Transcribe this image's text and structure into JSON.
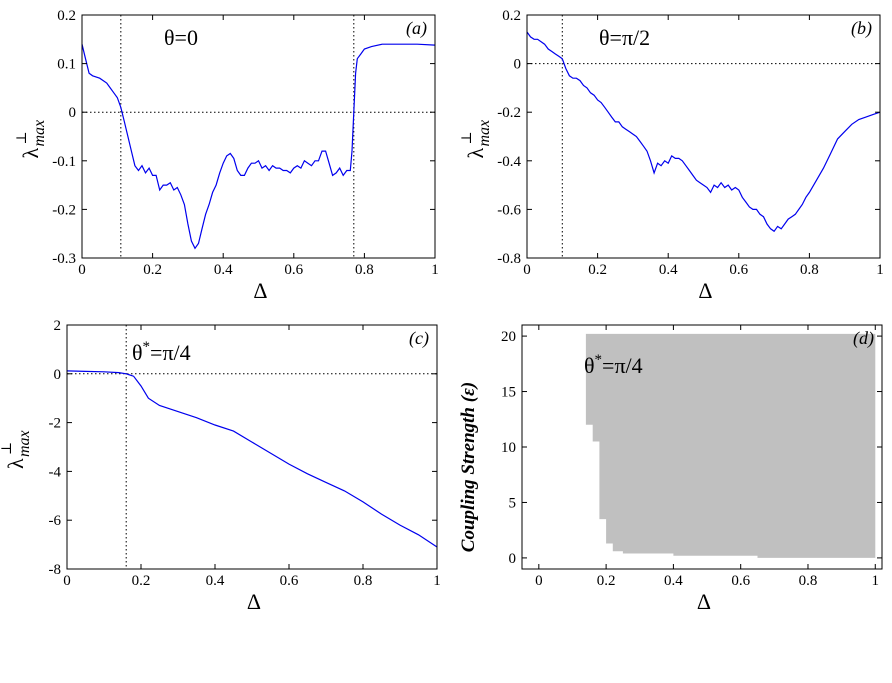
{
  "chart_data": [
    {
      "panel": "(a)",
      "type": "line",
      "annotation": "θ=0",
      "xlabel": "Δ",
      "ylabel": "λ⊥max",
      "xlim": [
        0,
        1
      ],
      "ylim": [
        -0.3,
        0.2
      ],
      "xticks": [
        "0",
        "0.2",
        "0.4",
        "0.6",
        "0.8",
        "1"
      ],
      "yticks": [
        "-0.3",
        "-0.2",
        "-0.1",
        "0",
        "0.1",
        "0.2"
      ],
      "reference_lines": {
        "horizontal_y": 0,
        "vertical_x": [
          0.11,
          0.77
        ]
      },
      "series": [
        {
          "color": "#0000ee",
          "points": [
            [
              0,
              0.14
            ],
            [
              0.01,
              0.11
            ],
            [
              0.02,
              0.08
            ],
            [
              0.03,
              0.075
            ],
            [
              0.05,
              0.07
            ],
            [
              0.06,
              0.065
            ],
            [
              0.07,
              0.06
            ],
            [
              0.08,
              0.05
            ],
            [
              0.09,
              0.04
            ],
            [
              0.1,
              0.03
            ],
            [
              0.11,
              0.01
            ],
            [
              0.12,
              -0.02
            ],
            [
              0.13,
              -0.05
            ],
            [
              0.14,
              -0.08
            ],
            [
              0.15,
              -0.11
            ],
            [
              0.16,
              -0.12
            ],
            [
              0.17,
              -0.11
            ],
            [
              0.18,
              -0.125
            ],
            [
              0.19,
              -0.115
            ],
            [
              0.2,
              -0.13
            ],
            [
              0.21,
              -0.13
            ],
            [
              0.22,
              -0.16
            ],
            [
              0.23,
              -0.15
            ],
            [
              0.24,
              -0.15
            ],
            [
              0.25,
              -0.145
            ],
            [
              0.26,
              -0.16
            ],
            [
              0.27,
              -0.155
            ],
            [
              0.28,
              -0.17
            ],
            [
              0.29,
              -0.19
            ],
            [
              0.3,
              -0.23
            ],
            [
              0.31,
              -0.265
            ],
            [
              0.32,
              -0.28
            ],
            [
              0.33,
              -0.27
            ],
            [
              0.34,
              -0.24
            ],
            [
              0.35,
              -0.21
            ],
            [
              0.36,
              -0.19
            ],
            [
              0.37,
              -0.165
            ],
            [
              0.38,
              -0.15
            ],
            [
              0.39,
              -0.125
            ],
            [
              0.4,
              -0.105
            ],
            [
              0.41,
              -0.09
            ],
            [
              0.42,
              -0.085
            ],
            [
              0.43,
              -0.095
            ],
            [
              0.44,
              -0.12
            ],
            [
              0.45,
              -0.13
            ],
            [
              0.46,
              -0.13
            ],
            [
              0.47,
              -0.115
            ],
            [
              0.48,
              -0.105
            ],
            [
              0.49,
              -0.105
            ],
            [
              0.5,
              -0.1
            ],
            [
              0.51,
              -0.115
            ],
            [
              0.52,
              -0.11
            ],
            [
              0.53,
              -0.12
            ],
            [
              0.54,
              -0.11
            ],
            [
              0.55,
              -0.115
            ],
            [
              0.56,
              -0.115
            ],
            [
              0.57,
              -0.12
            ],
            [
              0.58,
              -0.12
            ],
            [
              0.59,
              -0.125
            ],
            [
              0.6,
              -0.115
            ],
            [
              0.61,
              -0.11
            ],
            [
              0.62,
              -0.115
            ],
            [
              0.63,
              -0.1
            ],
            [
              0.64,
              -0.105
            ],
            [
              0.65,
              -0.11
            ],
            [
              0.66,
              -0.1
            ],
            [
              0.67,
              -0.1
            ],
            [
              0.68,
              -0.08
            ],
            [
              0.69,
              -0.08
            ],
            [
              0.7,
              -0.105
            ],
            [
              0.71,
              -0.13
            ],
            [
              0.72,
              -0.125
            ],
            [
              0.73,
              -0.115
            ],
            [
              0.74,
              -0.13
            ],
            [
              0.75,
              -0.12
            ],
            [
              0.76,
              -0.12
            ],
            [
              0.765,
              -0.08
            ],
            [
              0.77,
              0.0
            ],
            [
              0.775,
              0.08
            ],
            [
              0.78,
              0.11
            ],
            [
              0.79,
              0.12
            ],
            [
              0.8,
              0.13
            ],
            [
              0.82,
              0.135
            ],
            [
              0.85,
              0.14
            ],
            [
              0.9,
              0.14
            ],
            [
              0.95,
              0.14
            ],
            [
              1.0,
              0.138
            ]
          ]
        }
      ]
    },
    {
      "panel": "(b)",
      "type": "line",
      "annotation": "θ=π/2",
      "xlabel": "Δ",
      "ylabel": "λ⊥max",
      "xlim": [
        0,
        1
      ],
      "ylim": [
        -0.8,
        0.2
      ],
      "xticks": [
        "0",
        "0.2",
        "0.4",
        "0.6",
        "0.8",
        "1"
      ],
      "yticks": [
        "-0.8",
        "-0.6",
        "-0.4",
        "-0.2",
        "0",
        "0.2"
      ],
      "reference_lines": {
        "horizontal_y": 0,
        "vertical_x": [
          0.1
        ]
      },
      "series": [
        {
          "color": "#0000ee",
          "points": [
            [
              0,
              0.13
            ],
            [
              0.01,
              0.11
            ],
            [
              0.02,
              0.1
            ],
            [
              0.03,
              0.1
            ],
            [
              0.04,
              0.09
            ],
            [
              0.05,
              0.08
            ],
            [
              0.06,
              0.06
            ],
            [
              0.07,
              0.05
            ],
            [
              0.08,
              0.04
            ],
            [
              0.09,
              0.03
            ],
            [
              0.1,
              0.02
            ],
            [
              0.11,
              -0.02
            ],
            [
              0.12,
              -0.05
            ],
            [
              0.13,
              -0.06
            ],
            [
              0.14,
              -0.06
            ],
            [
              0.15,
              -0.07
            ],
            [
              0.16,
              -0.09
            ],
            [
              0.17,
              -0.1
            ],
            [
              0.18,
              -0.12
            ],
            [
              0.19,
              -0.13
            ],
            [
              0.2,
              -0.15
            ],
            [
              0.21,
              -0.16
            ],
            [
              0.22,
              -0.18
            ],
            [
              0.23,
              -0.2
            ],
            [
              0.24,
              -0.22
            ],
            [
              0.25,
              -0.24
            ],
            [
              0.26,
              -0.24
            ],
            [
              0.27,
              -0.26
            ],
            [
              0.28,
              -0.27
            ],
            [
              0.29,
              -0.28
            ],
            [
              0.3,
              -0.29
            ],
            [
              0.31,
              -0.3
            ],
            [
              0.32,
              -0.32
            ],
            [
              0.33,
              -0.34
            ],
            [
              0.34,
              -0.36
            ],
            [
              0.35,
              -0.4
            ],
            [
              0.36,
              -0.45
            ],
            [
              0.37,
              -0.41
            ],
            [
              0.38,
              -0.42
            ],
            [
              0.39,
              -0.4
            ],
            [
              0.4,
              -0.41
            ],
            [
              0.41,
              -0.38
            ],
            [
              0.42,
              -0.39
            ],
            [
              0.43,
              -0.39
            ],
            [
              0.44,
              -0.4
            ],
            [
              0.45,
              -0.42
            ],
            [
              0.46,
              -0.44
            ],
            [
              0.47,
              -0.46
            ],
            [
              0.48,
              -0.48
            ],
            [
              0.49,
              -0.49
            ],
            [
              0.5,
              -0.5
            ],
            [
              0.51,
              -0.51
            ],
            [
              0.52,
              -0.53
            ],
            [
              0.53,
              -0.5
            ],
            [
              0.54,
              -0.51
            ],
            [
              0.55,
              -0.49
            ],
            [
              0.56,
              -0.51
            ],
            [
              0.57,
              -0.5
            ],
            [
              0.58,
              -0.52
            ],
            [
              0.59,
              -0.51
            ],
            [
              0.6,
              -0.52
            ],
            [
              0.61,
              -0.55
            ],
            [
              0.62,
              -0.57
            ],
            [
              0.63,
              -0.59
            ],
            [
              0.64,
              -0.6
            ],
            [
              0.65,
              -0.6
            ],
            [
              0.66,
              -0.62
            ],
            [
              0.67,
              -0.63
            ],
            [
              0.68,
              -0.66
            ],
            [
              0.69,
              -0.68
            ],
            [
              0.7,
              -0.69
            ],
            [
              0.71,
              -0.67
            ],
            [
              0.72,
              -0.68
            ],
            [
              0.73,
              -0.66
            ],
            [
              0.74,
              -0.64
            ],
            [
              0.75,
              -0.63
            ],
            [
              0.76,
              -0.62
            ],
            [
              0.77,
              -0.6
            ],
            [
              0.78,
              -0.58
            ],
            [
              0.79,
              -0.55
            ],
            [
              0.8,
              -0.53
            ],
            [
              0.82,
              -0.48
            ],
            [
              0.84,
              -0.43
            ],
            [
              0.86,
              -0.37
            ],
            [
              0.88,
              -0.31
            ],
            [
              0.9,
              -0.28
            ],
            [
              0.92,
              -0.25
            ],
            [
              0.94,
              -0.23
            ],
            [
              0.96,
              -0.22
            ],
            [
              0.98,
              -0.21
            ],
            [
              1.0,
              -0.2
            ]
          ]
        }
      ]
    },
    {
      "panel": "(c)",
      "type": "line",
      "annotation": "θ*=π/4",
      "xlabel": "Δ",
      "ylabel": "λ⊥max",
      "xlim": [
        0,
        1
      ],
      "ylim": [
        -8,
        2
      ],
      "xticks": [
        "0",
        "0.2",
        "0.4",
        "0.6",
        "0.8",
        "1"
      ],
      "yticks": [
        "-8",
        "-6",
        "-4",
        "-2",
        "0",
        "2"
      ],
      "reference_lines": {
        "horizontal_y": 0,
        "vertical_x": [
          0.16
        ]
      },
      "series": [
        {
          "color": "#0000ee",
          "points": [
            [
              0,
              0.12
            ],
            [
              0.05,
              0.1
            ],
            [
              0.1,
              0.08
            ],
            [
              0.14,
              0.05
            ],
            [
              0.16,
              0.0
            ],
            [
              0.18,
              -0.1
            ],
            [
              0.2,
              -0.5
            ],
            [
              0.22,
              -1.0
            ],
            [
              0.25,
              -1.3
            ],
            [
              0.3,
              -1.55
            ],
            [
              0.35,
              -1.8
            ],
            [
              0.4,
              -2.1
            ],
            [
              0.45,
              -2.35
            ],
            [
              0.5,
              -2.8
            ],
            [
              0.55,
              -3.25
            ],
            [
              0.6,
              -3.7
            ],
            [
              0.65,
              -4.1
            ],
            [
              0.7,
              -4.45
            ],
            [
              0.75,
              -4.8
            ],
            [
              0.8,
              -5.25
            ],
            [
              0.85,
              -5.75
            ],
            [
              0.9,
              -6.2
            ],
            [
              0.95,
              -6.6
            ],
            [
              1.0,
              -7.1
            ]
          ]
        }
      ]
    },
    {
      "panel": "(d)",
      "type": "heatmap",
      "annotation": "θ*=π/4",
      "xlabel": "Δ",
      "ylabel": "Coupling Strength (ε)",
      "xlim": [
        -0.05,
        1.02
      ],
      "ylim": [
        -1,
        21
      ],
      "xticks": [
        "0",
        "0.2",
        "0.4",
        "0.6",
        "0.8",
        "1"
      ],
      "yticks": [
        "0",
        "5",
        "10",
        "15",
        "20"
      ],
      "region_color": "#c0c0c0",
      "region_lower_boundary": [
        [
          0.14,
          20.2
        ],
        [
          0.14,
          12
        ],
        [
          0.16,
          12
        ],
        [
          0.16,
          10.5
        ],
        [
          0.18,
          10.5
        ],
        [
          0.18,
          3.5
        ],
        [
          0.2,
          3.5
        ],
        [
          0.2,
          1.3
        ],
        [
          0.22,
          1.3
        ],
        [
          0.22,
          0.6
        ],
        [
          0.25,
          0.6
        ],
        [
          0.25,
          0.4
        ],
        [
          0.4,
          0.4
        ],
        [
          0.4,
          0.2
        ],
        [
          0.65,
          0.2
        ],
        [
          0.65,
          0.0
        ],
        [
          1.0,
          0.0
        ],
        [
          1.0,
          20.2
        ]
      ]
    }
  ],
  "panel_labels": [
    "(a)",
    "(b)",
    "(c)",
    "(d)"
  ],
  "axis_label_delta": "Δ",
  "ylabel_lambda": "λ",
  "ylabel_sub": "max",
  "ylabel_perp": "⊥",
  "ylabel_coupling": "Coupling Strength (ε)",
  "ann_a": "θ=0",
  "ann_b": "θ=π/2",
  "ann_c": "θ*=π/4",
  "ann_d": "θ*=π/4"
}
